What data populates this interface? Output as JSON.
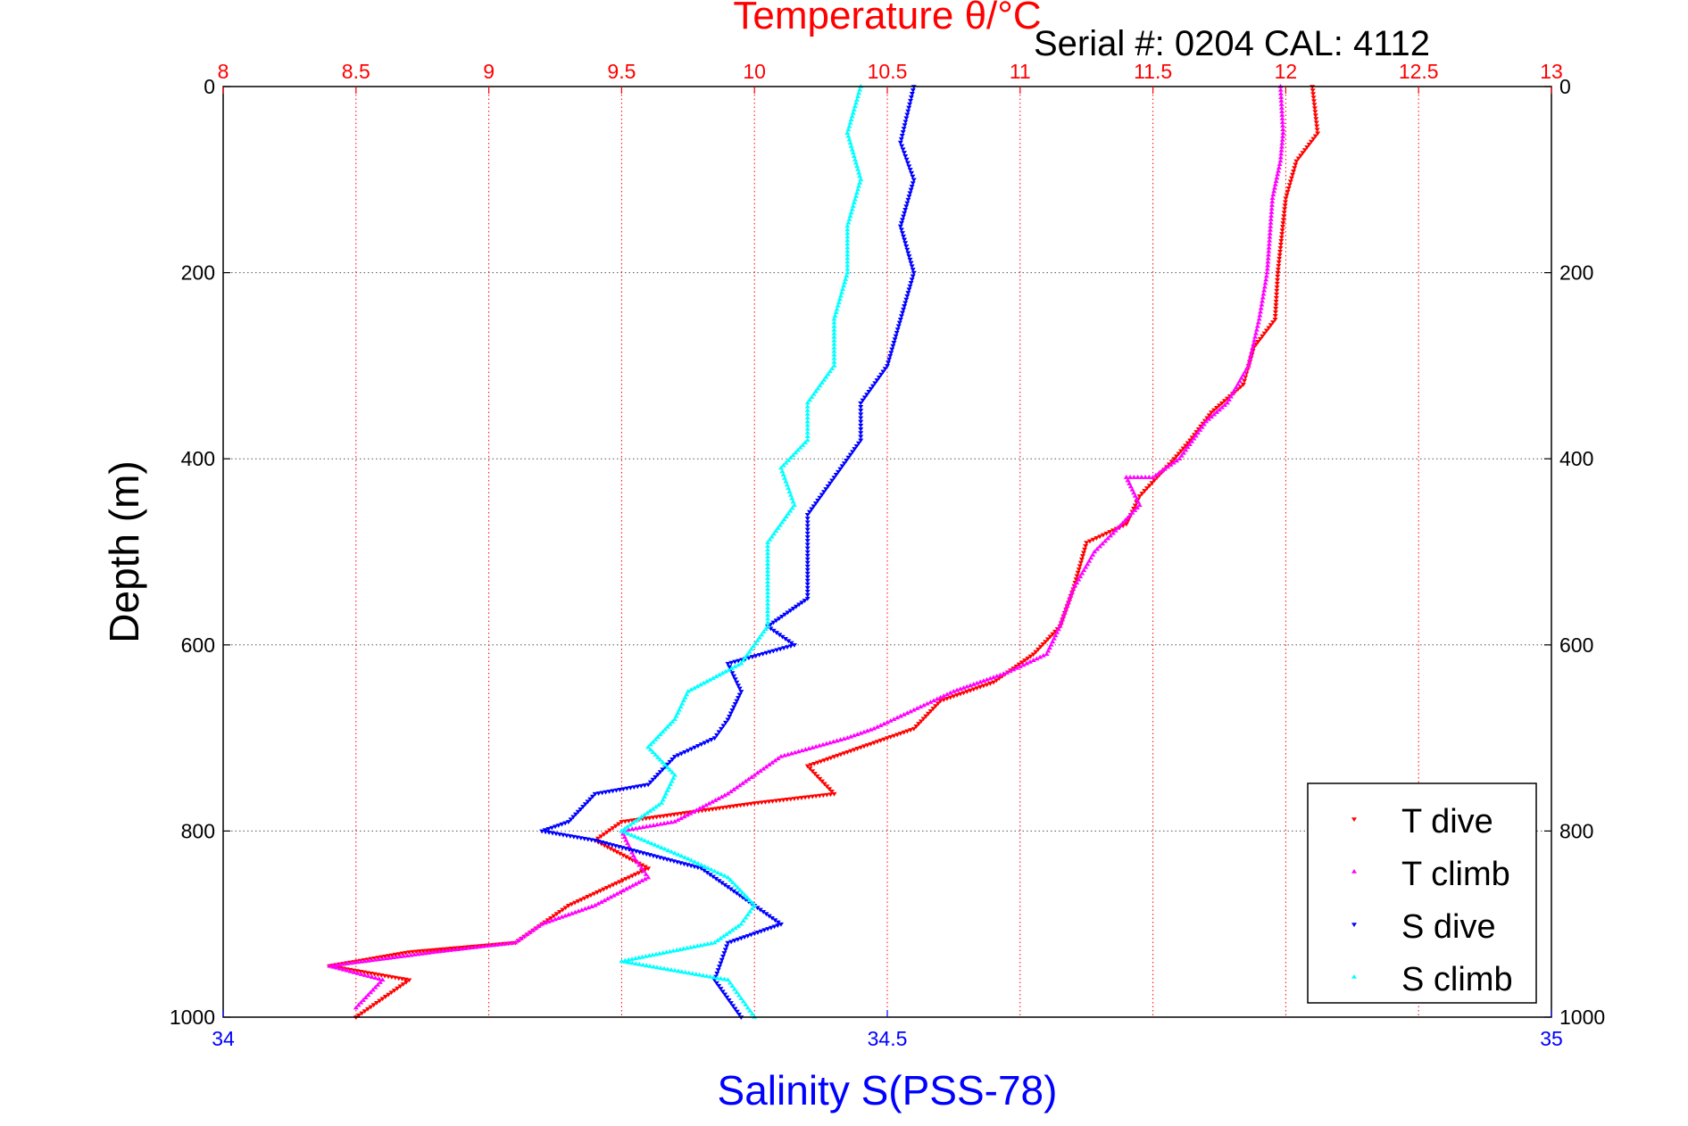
{
  "chart_data": {
    "type": "scatter",
    "title": "Temperature θ/°C",
    "subtitle": "Serial #: 0204  CAL: 4112",
    "xlabel": "Salinity S(PSS-78)",
    "ylabel": "Depth (m)",
    "top_axis": {
      "label": "Temperature θ/°C",
      "range": [
        8,
        13
      ],
      "ticks": [
        "8",
        "8.5",
        "9",
        "9.5",
        "10",
        "10.5",
        "11",
        "11.5",
        "12",
        "12.5",
        "13"
      ],
      "color": "#ff0000"
    },
    "bottom_axis": {
      "label": "Salinity S(PSS-78)",
      "range": [
        34,
        35
      ],
      "ticks": [
        "34",
        "34.5",
        "35"
      ],
      "color": "#0000ff"
    },
    "y_axis": {
      "range": [
        0,
        1000
      ],
      "reversed": true,
      "ticks": [
        "0",
        "200",
        "400",
        "600",
        "800",
        "1000"
      ]
    },
    "grid": true,
    "legend_position": "bottom-right",
    "series": [
      {
        "name": "T dive",
        "axis": "temperature",
        "color": "#ff0000",
        "marker": "triangle-down",
        "points": [
          [
            12.1,
            0
          ],
          [
            12.12,
            50
          ],
          [
            12.04,
            80
          ],
          [
            12.0,
            120
          ],
          [
            11.97,
            200
          ],
          [
            11.96,
            250
          ],
          [
            11.88,
            280
          ],
          [
            11.86,
            300
          ],
          [
            11.84,
            320
          ],
          [
            11.72,
            350
          ],
          [
            11.64,
            380
          ],
          [
            11.58,
            400
          ],
          [
            11.45,
            440
          ],
          [
            11.4,
            470
          ],
          [
            11.25,
            490
          ],
          [
            11.2,
            540
          ],
          [
            11.15,
            580
          ],
          [
            11.05,
            610
          ],
          [
            10.9,
            640
          ],
          [
            10.7,
            660
          ],
          [
            10.6,
            690
          ],
          [
            10.4,
            710
          ],
          [
            10.2,
            730
          ],
          [
            10.3,
            760
          ],
          [
            10.0,
            770
          ],
          [
            9.5,
            790
          ],
          [
            9.4,
            810
          ],
          [
            9.6,
            840
          ],
          [
            9.3,
            880
          ],
          [
            9.2,
            900
          ],
          [
            9.1,
            920
          ],
          [
            8.7,
            930
          ],
          [
            8.4,
            945
          ],
          [
            8.7,
            960
          ],
          [
            8.6,
            980
          ],
          [
            8.5,
            1000
          ]
        ]
      },
      {
        "name": "T climb",
        "axis": "temperature",
        "color": "#ff00ff",
        "marker": "triangle-up",
        "points": [
          [
            11.98,
            0
          ],
          [
            11.99,
            50
          ],
          [
            11.98,
            80
          ],
          [
            11.95,
            120
          ],
          [
            11.93,
            200
          ],
          [
            11.9,
            250
          ],
          [
            11.86,
            300
          ],
          [
            11.78,
            340
          ],
          [
            11.7,
            360
          ],
          [
            11.6,
            400
          ],
          [
            11.5,
            420
          ],
          [
            11.4,
            420
          ],
          [
            11.45,
            450
          ],
          [
            11.35,
            480
          ],
          [
            11.28,
            500
          ],
          [
            11.2,
            540
          ],
          [
            11.15,
            580
          ],
          [
            11.1,
            610
          ],
          [
            10.95,
            630
          ],
          [
            10.75,
            650
          ],
          [
            10.6,
            670
          ],
          [
            10.45,
            690
          ],
          [
            10.35,
            700
          ],
          [
            10.1,
            720
          ],
          [
            10.0,
            740
          ],
          [
            9.9,
            760
          ],
          [
            9.7,
            790
          ],
          [
            9.5,
            800
          ],
          [
            9.55,
            830
          ],
          [
            9.6,
            850
          ],
          [
            9.4,
            880
          ],
          [
            9.2,
            900
          ],
          [
            9.1,
            920
          ],
          [
            8.8,
            930
          ],
          [
            8.4,
            945
          ],
          [
            8.6,
            960
          ],
          [
            8.5,
            990
          ]
        ]
      },
      {
        "name": "S dive",
        "axis": "salinity",
        "color": "#0000ff",
        "marker": "triangle-down",
        "points": [
          [
            34.52,
            0
          ],
          [
            34.51,
            60
          ],
          [
            34.52,
            100
          ],
          [
            34.51,
            150
          ],
          [
            34.52,
            200
          ],
          [
            34.51,
            250
          ],
          [
            34.5,
            300
          ],
          [
            34.48,
            340
          ],
          [
            34.48,
            380
          ],
          [
            34.46,
            420
          ],
          [
            34.44,
            460
          ],
          [
            34.44,
            500
          ],
          [
            34.44,
            550
          ],
          [
            34.41,
            580
          ],
          [
            34.43,
            600
          ],
          [
            34.38,
            620
          ],
          [
            34.39,
            650
          ],
          [
            34.38,
            680
          ],
          [
            34.37,
            700
          ],
          [
            34.34,
            720
          ],
          [
            34.32,
            750
          ],
          [
            34.28,
            760
          ],
          [
            34.26,
            790
          ],
          [
            34.24,
            800
          ],
          [
            34.28,
            810
          ],
          [
            34.36,
            840
          ],
          [
            34.4,
            880
          ],
          [
            34.42,
            900
          ],
          [
            34.38,
            920
          ],
          [
            34.37,
            960
          ],
          [
            34.39,
            1000
          ]
        ]
      },
      {
        "name": "S climb",
        "axis": "salinity",
        "color": "#00ffff",
        "marker": "triangle-up",
        "points": [
          [
            34.48,
            0
          ],
          [
            34.47,
            50
          ],
          [
            34.48,
            100
          ],
          [
            34.47,
            150
          ],
          [
            34.47,
            200
          ],
          [
            34.46,
            250
          ],
          [
            34.46,
            300
          ],
          [
            34.44,
            340
          ],
          [
            34.44,
            380
          ],
          [
            34.42,
            410
          ],
          [
            34.43,
            450
          ],
          [
            34.41,
            490
          ],
          [
            34.41,
            540
          ],
          [
            34.41,
            580
          ],
          [
            34.39,
            620
          ],
          [
            34.35,
            650
          ],
          [
            34.34,
            680
          ],
          [
            34.32,
            710
          ],
          [
            34.34,
            740
          ],
          [
            34.33,
            770
          ],
          [
            34.3,
            800
          ],
          [
            34.35,
            830
          ],
          [
            34.38,
            850
          ],
          [
            34.4,
            880
          ],
          [
            34.39,
            900
          ],
          [
            34.37,
            920
          ],
          [
            34.3,
            940
          ],
          [
            34.38,
            960
          ],
          [
            34.39,
            980
          ],
          [
            34.4,
            1000
          ]
        ]
      }
    ]
  }
}
